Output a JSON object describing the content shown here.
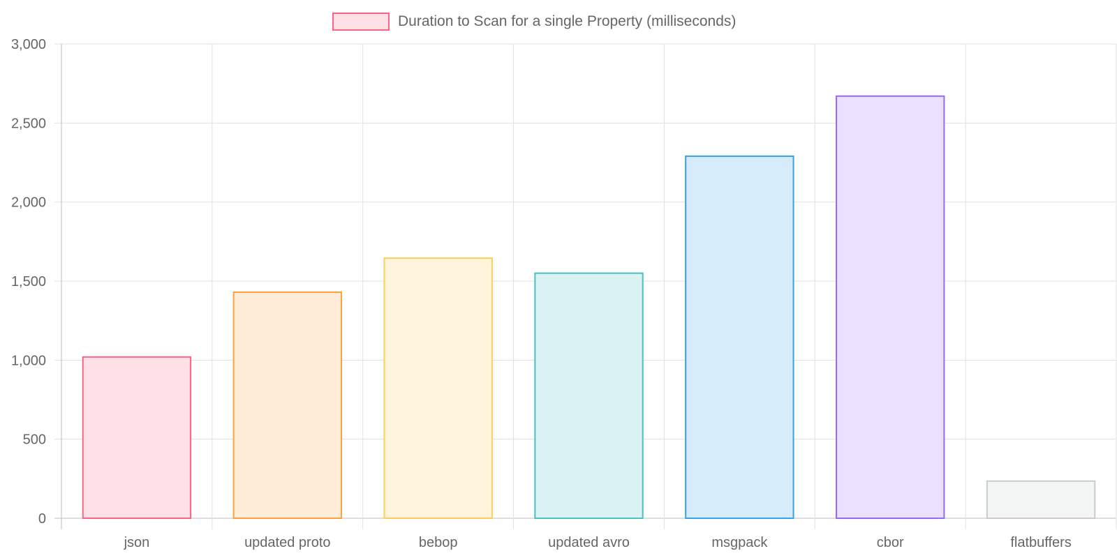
{
  "chart_data": {
    "type": "bar",
    "categories": [
      "json",
      "updated proto",
      "bebop",
      "updated avro",
      "msgpack",
      "cbor",
      "flatbuffers"
    ],
    "series": [
      {
        "name": "Duration to Scan for a single Property (milliseconds)",
        "values": [
          1020,
          1430,
          1645,
          1550,
          2290,
          2670,
          235
        ]
      }
    ],
    "ylim": [
      0,
      3000
    ],
    "yticks": [
      "0",
      "500",
      "1,000",
      "1,500",
      "2,000",
      "2,500",
      "3,000"
    ],
    "ytick_values": [
      0,
      500,
      1000,
      1500,
      2000,
      2500,
      3000
    ],
    "legend_position": "top-center",
    "grid": true,
    "colors": {
      "border": [
        "#ff6384",
        "#ff9f40",
        "#ffcd56",
        "#4bc0c0",
        "#36a2eb",
        "#9966ff",
        "#c9cbcf"
      ],
      "fill": [
        "#ffe0e6",
        "#ffecd9",
        "#fff5dd",
        "#dbf2f2",
        "#d7ecfb",
        "#ebe0ff",
        "#f4f5f5"
      ],
      "grid": "#e1e1e1",
      "axis": "#bdbdbd",
      "text": "#666666"
    }
  }
}
